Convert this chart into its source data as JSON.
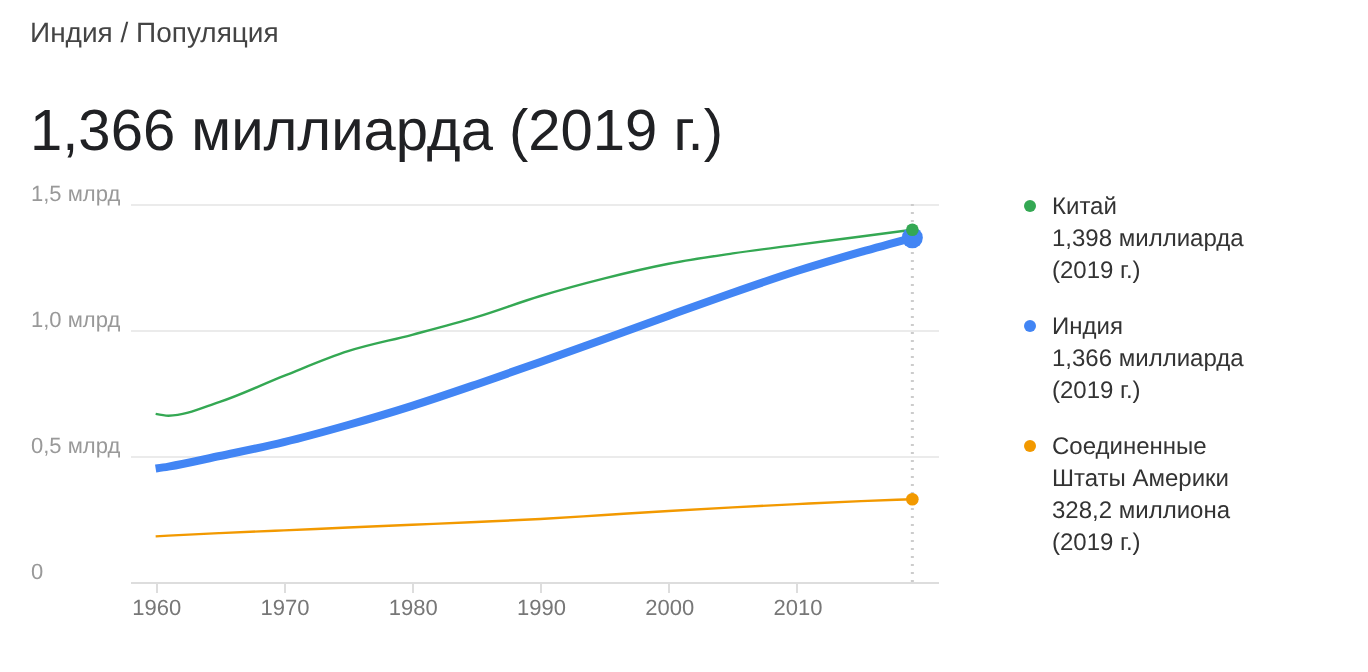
{
  "chart_data": {
    "type": "line",
    "subtitle": "Индия / Популяция",
    "title": "1,366 миллиарда (2019 г.)",
    "x": [
      1960,
      1961,
      1965,
      1970,
      1975,
      1980,
      1985,
      1990,
      1995,
      2000,
      2005,
      2010,
      2015,
      2019
    ],
    "series": [
      {
        "name": "Китай",
        "color": "#34a853",
        "values": [
          0.667,
          0.66,
          0.715,
          0.818,
          0.916,
          0.981,
          1.051,
          1.135,
          1.205,
          1.263,
          1.304,
          1.338,
          1.371,
          1.398
        ]
      },
      {
        "name": "Индия",
        "color": "#4285f4",
        "values": [
          0.45,
          0.458,
          0.5,
          0.555,
          0.623,
          0.699,
          0.784,
          0.873,
          0.964,
          1.057,
          1.148,
          1.234,
          1.31,
          1.366
        ]
      },
      {
        "name": "Соединенные Штаты Америки",
        "color": "#f29900",
        "values": [
          0.181,
          0.184,
          0.194,
          0.205,
          0.216,
          0.227,
          0.238,
          0.25,
          0.266,
          0.282,
          0.296,
          0.309,
          0.321,
          0.3282
        ]
      }
    ],
    "annotations": [
      "1,398 миллиарда (2019 г.)",
      "1,366 миллиарда (2019 г.)",
      "328,2 миллиона (2019 г.)"
    ],
    "xlim": [
      1958,
      2021
    ],
    "xticks": [
      1960,
      1970,
      1980,
      1990,
      2000,
      2010
    ],
    "ylim": [
      0,
      1.5
    ],
    "yticks": [
      {
        "value": 0,
        "label": "0"
      },
      {
        "value": 0.5,
        "label": "0,5 млрд"
      },
      {
        "value": 1,
        "label": "1,0 млрд"
      },
      {
        "value": 1.5,
        "label": "1,5 млрд"
      }
    ],
    "ref_lines": [
      {
        "axis": "x",
        "value": 2019,
        "color": "#cccccc",
        "line_style": "dotted"
      }
    ],
    "grid": "y",
    "legend": "right"
  }
}
